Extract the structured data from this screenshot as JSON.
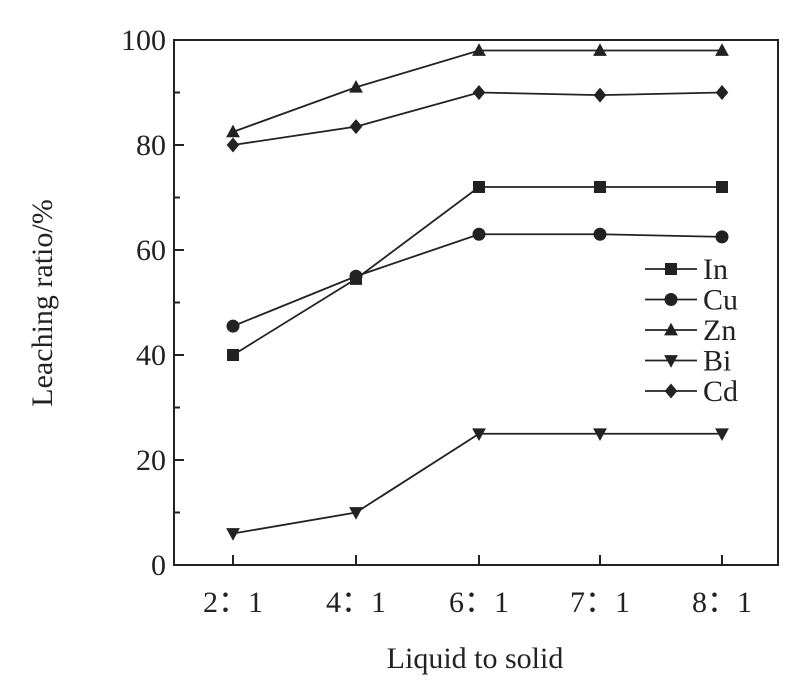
{
  "chart_data": {
    "type": "line",
    "categories": [
      "2：1",
      "4：1",
      "6：1",
      "7：1",
      "8：1"
    ],
    "xlabel": "Liquid to solid",
    "ylabel": "Leaching ratio/%",
    "ylim": [
      0,
      100
    ],
    "yticks": [
      "0",
      "20",
      "40",
      "60",
      "80",
      "100"
    ],
    "grid": false,
    "legend_position": "right",
    "series": [
      {
        "name": "In",
        "marker": "square",
        "values": [
          40,
          54.5,
          72,
          72,
          72
        ]
      },
      {
        "name": "Cu",
        "marker": "circle",
        "values": [
          45.5,
          55,
          63,
          63,
          62.5
        ]
      },
      {
        "name": "Zn",
        "marker": "triangle-up",
        "values": [
          82.5,
          91,
          98,
          98,
          98
        ]
      },
      {
        "name": "Bi",
        "marker": "triangle-down",
        "values": [
          6,
          10,
          25,
          25,
          25
        ]
      },
      {
        "name": "Cd",
        "marker": "diamond",
        "values": [
          80,
          83.5,
          90,
          89.5,
          90
        ]
      }
    ]
  }
}
